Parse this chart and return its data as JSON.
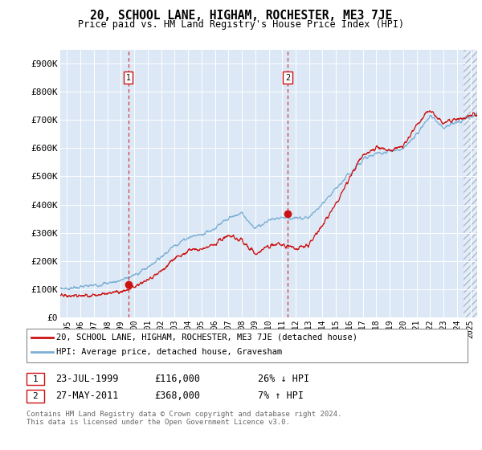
{
  "title": "20, SCHOOL LANE, HIGHAM, ROCHESTER, ME3 7JE",
  "subtitle": "Price paid vs. HM Land Registry's House Price Index (HPI)",
  "ylim": [
    0,
    950000
  ],
  "yticks": [
    0,
    100000,
    200000,
    300000,
    400000,
    500000,
    600000,
    700000,
    800000,
    900000
  ],
  "ytick_labels": [
    "£0",
    "£100K",
    "£200K",
    "£300K",
    "£400K",
    "£500K",
    "£600K",
    "£700K",
    "£800K",
    "£900K"
  ],
  "hpi_color": "#7bafd4",
  "price_color": "#cc1111",
  "transaction1": {
    "date_num": 1999.56,
    "price": 116000,
    "label": "1",
    "date_str": "23-JUL-1999",
    "price_str": "£116,000",
    "hpi_rel": "26% ↓ HPI"
  },
  "transaction2": {
    "date_num": 2011.41,
    "price": 368000,
    "label": "2",
    "date_str": "27-MAY-2011",
    "price_str": "£368,000",
    "hpi_rel": "7% ↑ HPI"
  },
  "legend_line1": "20, SCHOOL LANE, HIGHAM, ROCHESTER, ME3 7JE (detached house)",
  "legend_line2": "HPI: Average price, detached house, Gravesham",
  "footer": "Contains HM Land Registry data © Crown copyright and database right 2024.\nThis data is licensed under the Open Government Licence v3.0.",
  "plot_bg": "#dce8f5",
  "hatch_region_start": 2024.5,
  "xlim_start": 1994.5,
  "xlim_end": 2025.5,
  "xticks_start": 1995,
  "xticks_end": 2025
}
